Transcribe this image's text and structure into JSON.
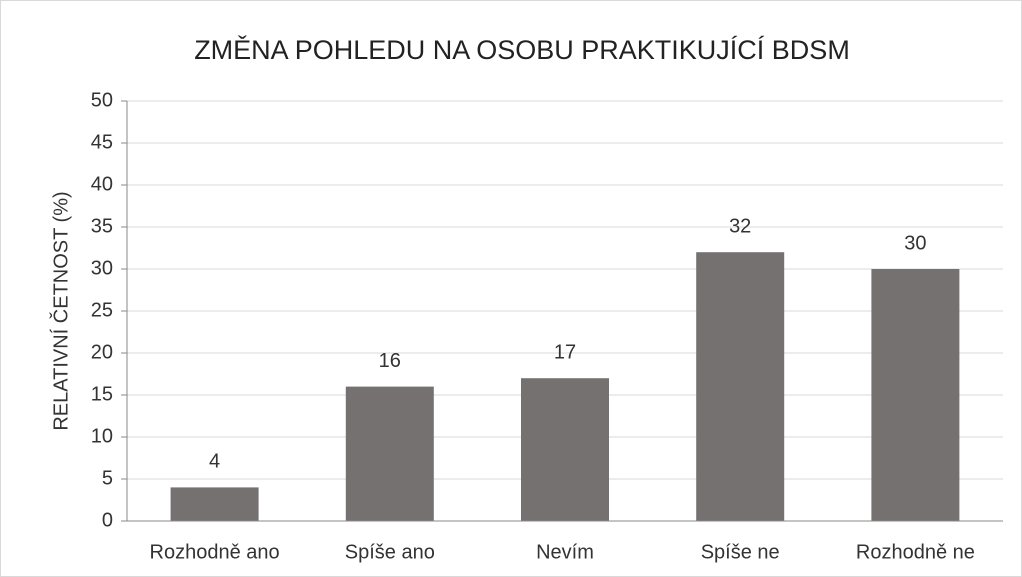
{
  "chart_data": {
    "type": "bar",
    "title": "ZMĚNA POHLEDU NA OSOBU PRAKTIKUJÍCÍ BDSM",
    "y_label": "RELATIVNÍ ČETNOST (%)",
    "categories": [
      "Rozhodně ano",
      "Spíše ano",
      "Nevím",
      "Spíše ne",
      "Rozhodně ne"
    ],
    "values": [
      4,
      16,
      17,
      32,
      30
    ],
    "color": "#767171",
    "ylim": [
      0,
      50
    ],
    "yticks": [
      0,
      5,
      10,
      15,
      20,
      25,
      30,
      35,
      40,
      45,
      50
    ],
    "grid": true
  }
}
